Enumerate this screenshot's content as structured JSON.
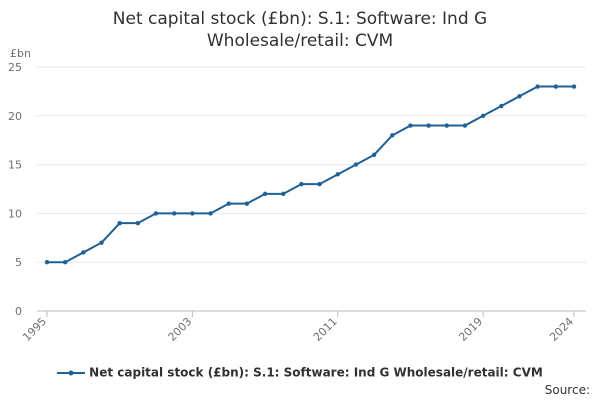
{
  "chart_data": {
    "type": "line",
    "title": "Net capital stock (£bn): S.1: Software: Ind G Wholesale/retail: CVM",
    "ylabel": "£bn",
    "xlabel": "",
    "ylim": [
      0,
      25
    ],
    "yticks": [
      0,
      5,
      10,
      15,
      20,
      25
    ],
    "xlim": [
      1995,
      2024
    ],
    "xticks": [
      1995,
      2003,
      2011,
      2019,
      2024
    ],
    "grid": true,
    "legend_position": "bottom",
    "x": [
      1995,
      1996,
      1997,
      1998,
      1999,
      2000,
      2001,
      2002,
      2003,
      2004,
      2005,
      2006,
      2007,
      2008,
      2009,
      2010,
      2011,
      2012,
      2013,
      2014,
      2015,
      2016,
      2017,
      2018,
      2019,
      2020,
      2021,
      2022,
      2023,
      2024
    ],
    "series": [
      {
        "name": "Net capital stock (£bn): S.1: Software: Ind G Wholesale/retail: CVM",
        "color": "#206095",
        "values": [
          5,
          5,
          6,
          7,
          9,
          9,
          10,
          10,
          10,
          10,
          11,
          11,
          12,
          12,
          13,
          13,
          14,
          15,
          16,
          18,
          19,
          19,
          19,
          19,
          20,
          21,
          22,
          23,
          23,
          23
        ]
      }
    ]
  },
  "footer": {
    "source": "Source:"
  }
}
